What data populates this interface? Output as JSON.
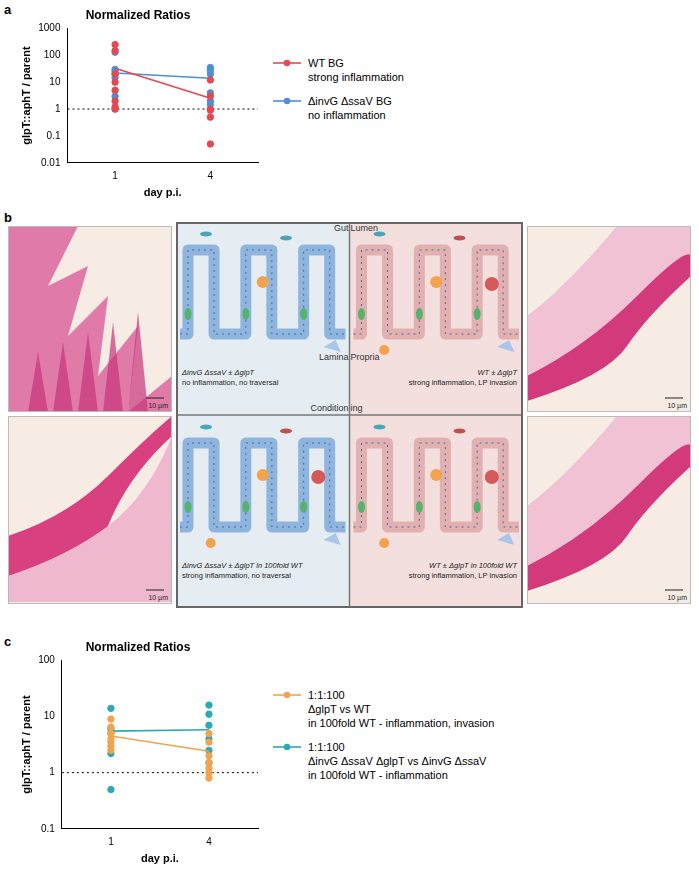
{
  "chart_data": [
    {
      "panel": "a",
      "type": "scatter",
      "title": "Normalized Ratios",
      "x_label": "day p.i.",
      "y_label": "glpT::aphT / parent",
      "categories": [
        "1",
        "4"
      ],
      "log": "y",
      "ylim": [
        0.01,
        1000
      ],
      "yticks": [
        0.01,
        0.1,
        1,
        10,
        100,
        1000
      ],
      "grid": false,
      "legend": "right",
      "reference_line": 1,
      "series": [
        {
          "name": [
            "WT BG",
            "strong inflammation"
          ],
          "color": "#e8474f",
          "marker": "circle",
          "x": [
            "1",
            "1",
            "1",
            "1",
            "1",
            "1",
            "1",
            "1",
            "4",
            "4",
            "4",
            "4",
            "4",
            "4"
          ],
          "values": [
            250,
            150,
            20,
            10,
            5,
            2,
            1.2,
            1,
            12,
            3,
            1,
            0.9,
            0.5,
            0.05
          ],
          "mean": [
            33,
            2.5
          ]
        },
        {
          "name": [
            "ΔinvG ΔssaV BG",
            "no inflammation"
          ],
          "color": "#4d8fd6",
          "marker": "circle",
          "x": [
            "1",
            "1",
            "1",
            "1",
            "1",
            "1",
            "1",
            "4",
            "4",
            "4",
            "4",
            "4",
            "4"
          ],
          "values": [
            130,
            30,
            25,
            20,
            15,
            3,
            1,
            35,
            28,
            20,
            4,
            2,
            1.5
          ],
          "mean": [
            22,
            14
          ]
        }
      ]
    },
    {
      "panel": "c",
      "type": "scatter",
      "title": "Normalized Ratios",
      "x_label": "day p.i.",
      "y_label": "glpT::aphT / parent",
      "categories": [
        "1",
        "4"
      ],
      "log": "y",
      "ylim": [
        0.1,
        100
      ],
      "yticks": [
        0.1,
        1,
        10,
        100
      ],
      "grid": false,
      "legend": "right",
      "reference_line": 1,
      "series": [
        {
          "name": [
            "1:1:100",
            "ΔglpT vs WT",
            "in 100fold WT - inflammation, invasion"
          ],
          "color": "#f2a34d",
          "marker": "circle",
          "x": [
            "1",
            "1",
            "1",
            "1",
            "1",
            "1",
            "1",
            "4",
            "4",
            "4",
            "4",
            "4",
            "4",
            "4"
          ],
          "values": [
            9,
            6.5,
            5,
            4,
            3.5,
            3,
            2.5,
            5,
            3.5,
            2,
            1.5,
            1.2,
            1,
            0.8
          ],
          "mean": [
            4.5,
            2.4
          ]
        },
        {
          "name": [
            "1:1:100",
            "ΔinvG ΔssaV ΔglpT vs ΔinvG ΔssaV",
            "in 100fold WT - inflammation"
          ],
          "color": "#2aaab8",
          "marker": "circle",
          "x": [
            "1",
            "1",
            "1",
            "1",
            "1",
            "4",
            "4",
            "4",
            "4",
            "4",
            "4"
          ],
          "values": [
            14,
            6,
            5,
            2.2,
            0.5,
            16,
            11,
            7,
            4,
            2.5,
            1.5
          ],
          "mean": [
            5.5,
            5.8
          ]
        }
      ]
    }
  ],
  "panel_b": {
    "panel": "b",
    "scale_bars": [
      "10 µm",
      "10 µm",
      "10 µm",
      "10 µm"
    ],
    "diagram": {
      "top_label": [
        "Gut",
        "Lumen"
      ],
      "middle_label": [
        "Lamina",
        "Propria"
      ],
      "center_label": [
        "Condition",
        "ing"
      ],
      "quadrants": [
        {
          "lines": [
            "ΔinvG ΔssaV ± ΔglpT",
            "no inflammation, no traversal"
          ]
        },
        {
          "lines": [
            "WT ± ΔglpT",
            "strong inflammation, LP invasion"
          ]
        },
        {
          "lines": [
            "ΔinvG ΔssaV ± ΔglpT in 100fold WT",
            "strong inflammation, no traversal"
          ]
        },
        {
          "lines": [
            "WT ± ΔglpT in 100fold WT",
            "strong inflammation, LP invasion"
          ]
        }
      ]
    }
  }
}
